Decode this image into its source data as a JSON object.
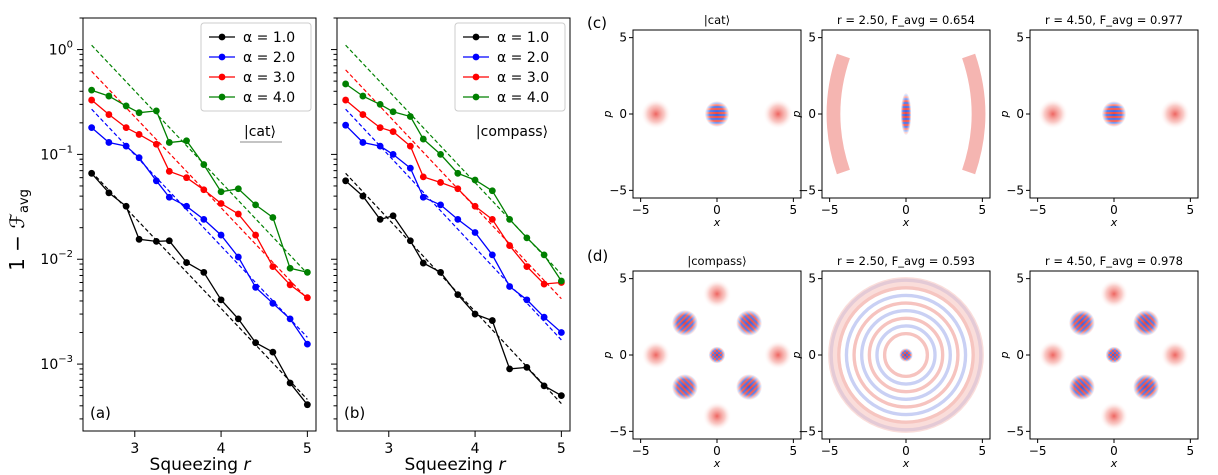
{
  "chart_data": [
    {
      "id": "a",
      "type": "line",
      "panel_label": "(a)",
      "annotation": "|cat⟩",
      "xlabel": "Squeezing r",
      "ylabel": "1 − F_avg",
      "yscale": "log",
      "xlim": [
        2.4,
        5.1
      ],
      "ylim": [
        0.00023,
        2.0
      ],
      "xticks": [
        3,
        4,
        5
      ],
      "yticks": [
        {
          "value": 0.001,
          "base": "10",
          "exp": "−3"
        },
        {
          "value": 0.01,
          "base": "10",
          "exp": "−2"
        },
        {
          "value": 0.1,
          "base": "10",
          "exp": "−1"
        },
        {
          "value": 1,
          "base": "10",
          "exp": "0"
        }
      ],
      "legend_position": "top-right",
      "x": [
        2.5,
        2.75,
        3.0,
        3.0,
        3.25,
        3.5,
        3.75,
        4.0,
        4.25,
        4.5,
        4.75,
        5.0
      ],
      "series": [
        {
          "name": "α = 1.0",
          "color": "#000000",
          "x": [
            2.5,
            2.7,
            2.9,
            3.05,
            3.25,
            3.4,
            3.6,
            3.8,
            4.0,
            4.2,
            4.4,
            4.6,
            4.8,
            5.0
          ],
          "values": [
            0.066,
            0.043,
            0.032,
            0.0155,
            0.0148,
            0.015,
            0.0093,
            0.0075,
            0.0041,
            0.0027,
            0.0016,
            0.0013,
            0.00066,
            0.00041
          ],
          "fit": [
            [
              2.5,
              0.068
            ],
            [
              5.0,
              0.00046
            ]
          ]
        },
        {
          "name": "α = 2.0",
          "color": "#0000ff",
          "x": [
            2.5,
            2.7,
            2.9,
            3.05,
            3.25,
            3.4,
            3.6,
            3.8,
            4.0,
            4.2,
            4.4,
            4.6,
            4.8,
            5.0
          ],
          "values": [
            0.18,
            0.13,
            0.12,
            0.093,
            0.056,
            0.039,
            0.032,
            0.024,
            0.017,
            0.0105,
            0.0054,
            0.0038,
            0.0027,
            0.00155
          ],
          "fit": [
            [
              2.5,
              0.27
            ],
            [
              5.0,
              0.0018
            ]
          ]
        },
        {
          "name": "α = 3.0",
          "color": "#ff0000",
          "x": [
            2.5,
            2.7,
            2.9,
            3.05,
            3.25,
            3.4,
            3.6,
            3.8,
            4.0,
            4.2,
            4.4,
            4.6,
            4.8,
            5.0
          ],
          "values": [
            0.33,
            0.24,
            0.18,
            0.155,
            0.125,
            0.069,
            0.06,
            0.046,
            0.034,
            0.027,
            0.017,
            0.0085,
            0.0057,
            0.0043
          ],
          "fit": [
            [
              2.5,
              0.62
            ],
            [
              5.0,
              0.0042
            ]
          ]
        },
        {
          "name": "α = 4.0",
          "color": "#008000",
          "x": [
            2.5,
            2.7,
            2.9,
            3.05,
            3.25,
            3.4,
            3.6,
            3.8,
            4.0,
            4.2,
            4.4,
            4.6,
            4.8,
            5.0
          ],
          "values": [
            0.41,
            0.36,
            0.29,
            0.25,
            0.26,
            0.13,
            0.135,
            0.08,
            0.044,
            0.047,
            0.033,
            0.025,
            0.0082,
            0.0075
          ],
          "fit": [
            [
              2.5,
              1.1
            ],
            [
              5.0,
              0.0073
            ]
          ]
        }
      ]
    },
    {
      "id": "b",
      "type": "line",
      "panel_label": "(b)",
      "annotation": "|compass⟩",
      "xlabel": "Squeezing r",
      "yscale": "log",
      "xlim": [
        2.4,
        5.1
      ],
      "ylim": [
        0.00023,
        2.0
      ],
      "xticks": [
        3,
        4,
        5
      ],
      "legend_position": "top-right",
      "series": [
        {
          "name": "α = 1.0",
          "color": "#000000",
          "x": [
            2.5,
            2.7,
            2.9,
            3.05,
            3.25,
            3.4,
            3.6,
            3.8,
            4.0,
            4.2,
            4.4,
            4.6,
            4.8,
            5.0
          ],
          "values": [
            0.056,
            0.04,
            0.024,
            0.026,
            0.015,
            0.0092,
            0.0075,
            0.0046,
            0.003,
            0.0026,
            0.0009,
            0.00093,
            0.00062,
            0.0005
          ],
          "fit": [
            [
              2.5,
              0.066
            ],
            [
              5.0,
              0.00042
            ]
          ]
        },
        {
          "name": "α = 2.0",
          "color": "#0000ff",
          "x": [
            2.5,
            2.7,
            2.9,
            3.05,
            3.25,
            3.4,
            3.6,
            3.8,
            4.0,
            4.2,
            4.4,
            4.6,
            4.8,
            5.0
          ],
          "values": [
            0.19,
            0.13,
            0.12,
            0.1,
            0.074,
            0.039,
            0.033,
            0.024,
            0.018,
            0.011,
            0.0055,
            0.0041,
            0.0028,
            0.002
          ],
          "fit": [
            [
              2.5,
              0.27
            ],
            [
              5.0,
              0.0017
            ]
          ]
        },
        {
          "name": "α = 3.0",
          "color": "#ff0000",
          "x": [
            2.5,
            2.7,
            2.9,
            3.05,
            3.25,
            3.4,
            3.6,
            3.8,
            4.0,
            4.2,
            4.4,
            4.6,
            4.8,
            5.0
          ],
          "values": [
            0.33,
            0.24,
            0.18,
            0.165,
            0.12,
            0.061,
            0.054,
            0.047,
            0.032,
            0.024,
            0.0135,
            0.0085,
            0.0058,
            0.006
          ],
          "fit": [
            [
              2.5,
              0.64
            ],
            [
              5.0,
              0.0042
            ]
          ]
        },
        {
          "name": "α = 4.0",
          "color": "#008000",
          "x": [
            2.5,
            2.7,
            2.9,
            3.05,
            3.25,
            3.4,
            3.6,
            3.8,
            4.0,
            4.2,
            4.4,
            4.6,
            4.8,
            5.0
          ],
          "values": [
            0.47,
            0.36,
            0.3,
            0.255,
            0.23,
            0.14,
            0.1,
            0.066,
            0.057,
            0.045,
            0.024,
            0.016,
            0.011,
            0.0062
          ],
          "fit": [
            [
              2.5,
              1.1
            ],
            [
              5.0,
              0.0072
            ]
          ]
        }
      ]
    },
    {
      "id": "c",
      "type": "heatmap",
      "row_label": "(c)",
      "xlabel": "x",
      "ylabel": "p",
      "xlim": [
        -5.5,
        5.5
      ],
      "ylim": [
        -5.5,
        5.5
      ],
      "ticks": [
        -5,
        0,
        5
      ],
      "panels": [
        {
          "title": "|cat⟩",
          "state": "cat",
          "r": null,
          "F_avg": null
        },
        {
          "title": "r = 2.50, F_avg = 0.654",
          "r": 2.5,
          "F_avg": 0.654,
          "state": "cat-squeezed"
        },
        {
          "title": "r = 4.50, F_avg = 0.977",
          "r": 4.5,
          "F_avg": 0.977,
          "state": "cat"
        }
      ]
    },
    {
      "id": "d",
      "type": "heatmap",
      "row_label": "(d)",
      "xlabel": "x",
      "ylabel": "p",
      "xlim": [
        -5.5,
        5.5
      ],
      "ylim": [
        -5.5,
        5.5
      ],
      "ticks": [
        -5,
        0,
        5
      ],
      "panels": [
        {
          "title": "|compass⟩",
          "state": "compass",
          "r": null,
          "F_avg": null
        },
        {
          "title": "r = 2.50, F_avg = 0.593",
          "r": 2.5,
          "F_avg": 0.593,
          "state": "compass-rings"
        },
        {
          "title": "r = 4.50, F_avg = 0.978",
          "r": 4.5,
          "F_avg": 0.978,
          "state": "compass"
        }
      ]
    }
  ],
  "colors": {
    "positive": "#e8322c",
    "negative": "#2b4fd8"
  }
}
